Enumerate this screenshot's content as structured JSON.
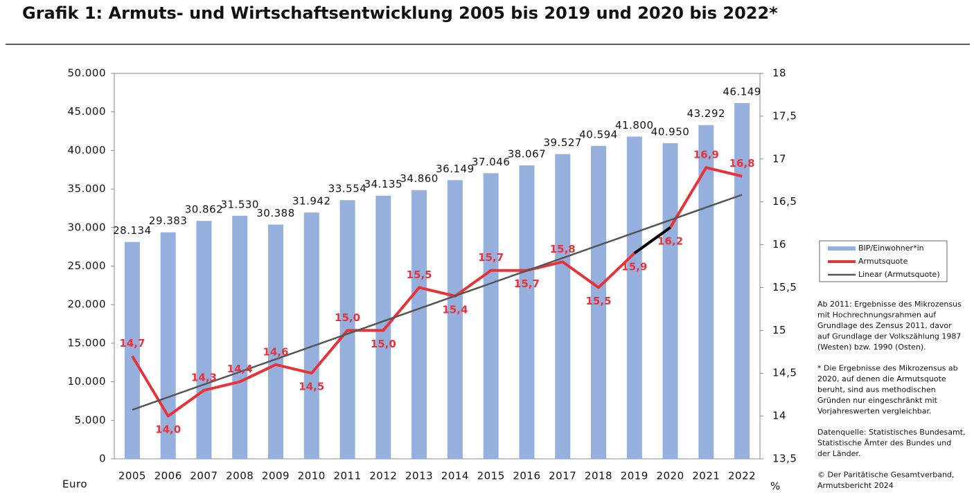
{
  "chart_data": {
    "type": "bar",
    "title": "Grafik 1: Armuts- und Wirtschaftsentwicklung 2005 bis 2019 und 2020 bis 2022*",
    "y_label": "Euro",
    "y2_label": "%",
    "categories": [
      "2005",
      "2006",
      "2007",
      "2008",
      "2009",
      "2010",
      "2011",
      "2012",
      "2013",
      "2014",
      "2015",
      "2016",
      "2017",
      "2018",
      "2019",
      "2020",
      "2021",
      "2022"
    ],
    "series": [
      {
        "name": "BIP/Einwohner*in",
        "type": "bar",
        "color": "#95b0dc",
        "values": [
          28134,
          29383,
          30862,
          31530,
          30388,
          31942,
          33554,
          34135,
          34860,
          36149,
          37046,
          38067,
          39527,
          40594,
          41800,
          40950,
          43292,
          46149
        ],
        "value_labels": [
          "28.134",
          "29.383",
          "30.862",
          "31.530",
          "30.388",
          "31.942",
          "33.554",
          "34.135",
          "34.860",
          "36.149",
          "37.046",
          "38.067",
          "39.527",
          "40.594",
          "41.800",
          "40.950",
          "43.292",
          "46.149"
        ]
      },
      {
        "name": "Armutsquote",
        "type": "line",
        "axis": "y2",
        "color": "#e8323a",
        "values": [
          14.7,
          14.0,
          14.3,
          14.4,
          14.6,
          14.5,
          15.0,
          15.0,
          15.5,
          15.4,
          15.7,
          15.7,
          15.8,
          15.5,
          15.9,
          16.2,
          16.9,
          16.8
        ],
        "value_labels": [
          "14,7",
          "14,0",
          "14,3",
          "14,4",
          "14,6",
          "14,5",
          "15,0",
          "15,0",
          "15,5",
          "15,4",
          "15,7",
          "15,7",
          "15,8",
          "15,5",
          "15,9",
          "16,2",
          "16,9",
          "16,8"
        ],
        "break_category": "2020",
        "break_color": "#000000"
      }
    ],
    "trend": {
      "name": "Linear (Armutsquote)",
      "color": "#555555"
    },
    "ylim": [
      0,
      50000
    ],
    "yticks": [
      0,
      {
        "value": 5000,
        "label": "5.000"
      },
      {
        "value": 10000,
        "label": "10.000"
      },
      {
        "value": 15000,
        "label": "15.000"
      },
      {
        "value": 20000,
        "label": "20.000"
      },
      {
        "value": 25000,
        "label": "25.000"
      },
      {
        "value": 30000,
        "label": "30.000"
      },
      {
        "value": 35000,
        "label": "35.000"
      },
      {
        "value": 40000,
        "label": "40.000"
      },
      {
        "value": 45000,
        "label": "45.000"
      },
      {
        "value": 50000,
        "label": "50.000"
      }
    ],
    "y2lim": [
      13.5,
      18
    ],
    "y2ticks": [
      {
        "value": 13.5,
        "label": "13,5"
      },
      14,
      {
        "value": 14.5,
        "label": "14,5"
      },
      15,
      {
        "value": 15.5,
        "label": "15,5"
      },
      16,
      {
        "value": 16.5,
        "label": "16,5"
      },
      17,
      {
        "value": 17.5,
        "label": "17,5"
      },
      18
    ],
    "grid": false,
    "notes": [
      [
        "Ab 2011: Ergebnisse des Mikrozensus",
        "mit Hochrechnungsrahmen auf",
        "Grundlage des Zensus 2011, davor",
        "auf Grundlage der Volkszählung 1987",
        "(Westen) bzw. 1990 (Osten)."
      ],
      [
        "* Die Ergebnisse des Mikrozensus ab",
        "2020, auf denen die Armutsquote",
        "beruht, sind aus methodischen",
        "Gründen nur eingeschränkt mit",
        "Vorjahreswerten vergleichbar."
      ],
      [
        "Datenquelle: Statistisches Bundesamt,",
        "Statistische Ämter des Bundes und",
        "der Länder."
      ],
      [
        "© Der Paritätische Gesamtverband,",
        "Armutsbericht 2024"
      ]
    ]
  }
}
